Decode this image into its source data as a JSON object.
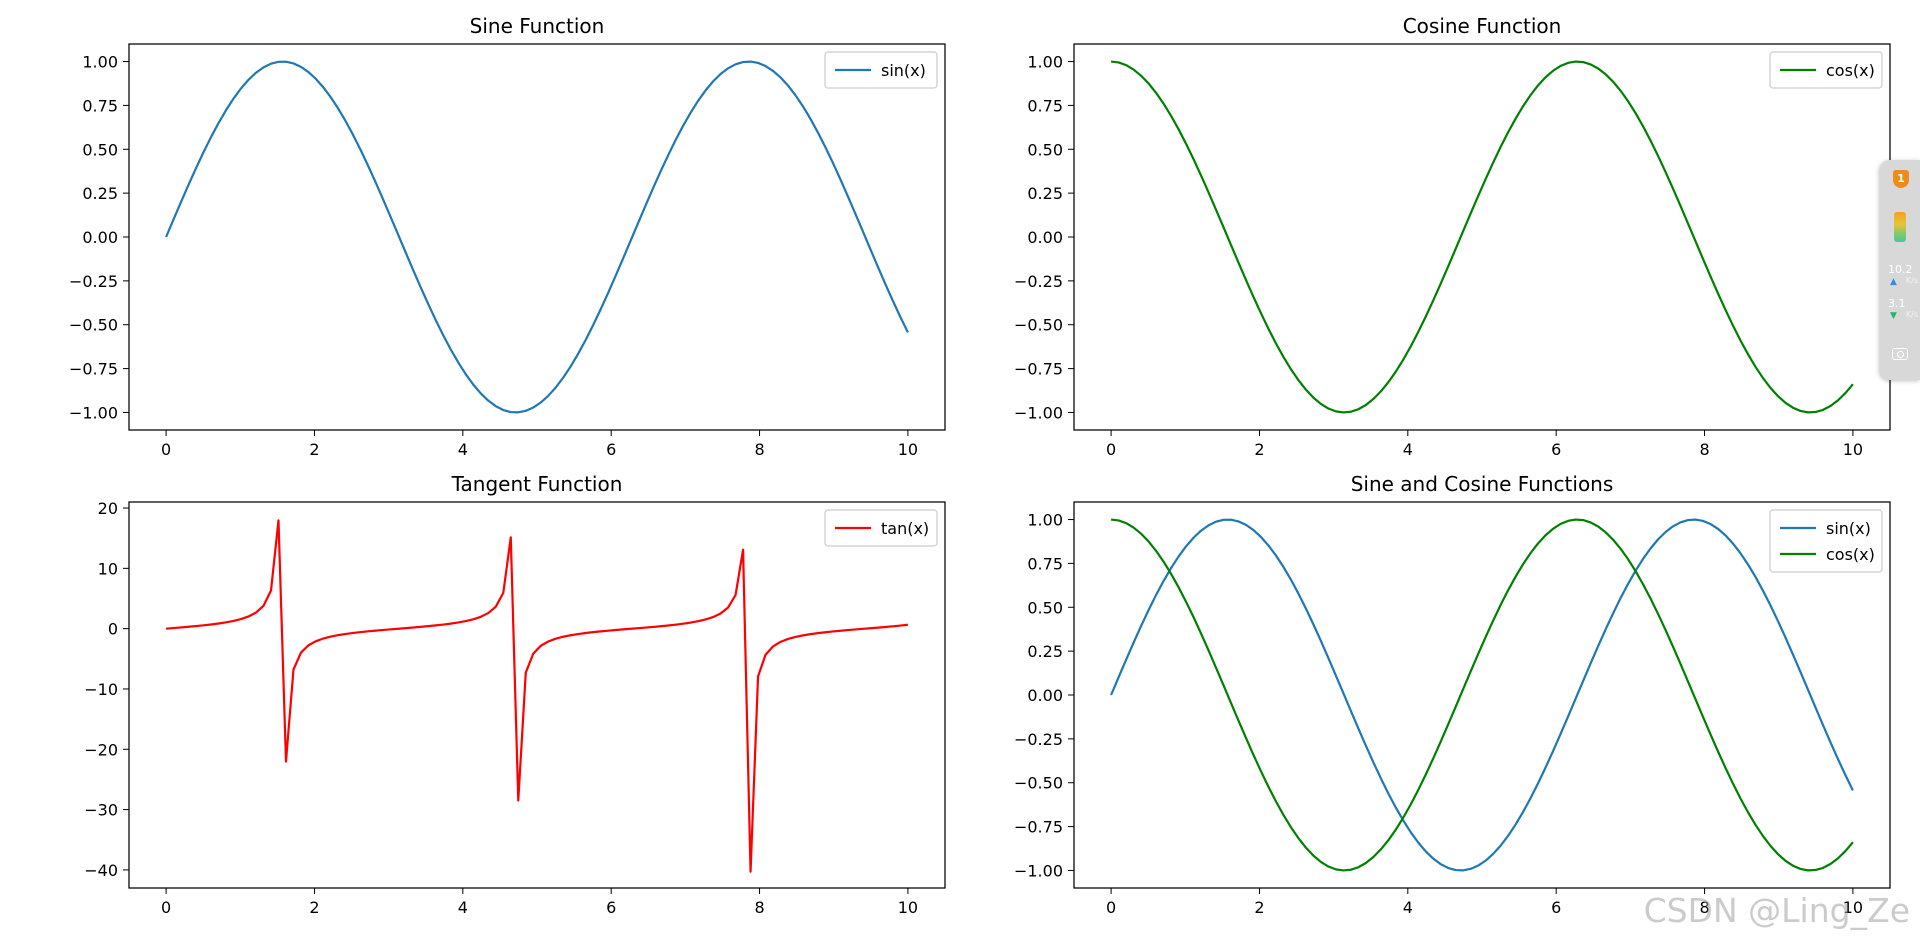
{
  "chart_data": [
    {
      "type": "line",
      "title": "Sine Function",
      "xlabel": "",
      "ylabel": "",
      "xlim": [
        -0.5,
        10.5
      ],
      "ylim": [
        -1.1,
        1.1
      ],
      "xticks": [
        0,
        2,
        4,
        6,
        8,
        10
      ],
      "yticks": [
        1.0,
        0.75,
        0.5,
        0.25,
        0.0,
        -0.25,
        -0.5,
        -0.75,
        -1.0
      ],
      "ytick_labels": [
        "1.00",
        "0.75",
        "0.50",
        "0.25",
        "0.00",
        "−0.25",
        "−0.50",
        "−0.75",
        "−1.00"
      ],
      "grid": false,
      "legend": "top-right",
      "series": [
        {
          "name": "sin(x)",
          "function": "sin",
          "x_range": [
            0,
            10
          ],
          "samples": 100,
          "color": "#1f77b4"
        }
      ]
    },
    {
      "type": "line",
      "title": "Cosine Function",
      "xlabel": "",
      "ylabel": "",
      "xlim": [
        -0.5,
        10.5
      ],
      "ylim": [
        -1.1,
        1.1
      ],
      "xticks": [
        0,
        2,
        4,
        6,
        8,
        10
      ],
      "yticks": [
        1.0,
        0.75,
        0.5,
        0.25,
        0.0,
        -0.25,
        -0.5,
        -0.75,
        -1.0
      ],
      "ytick_labels": [
        "1.00",
        "0.75",
        "0.50",
        "0.25",
        "0.00",
        "−0.25",
        "−0.50",
        "−0.75",
        "−1.00"
      ],
      "grid": false,
      "legend": "top-right",
      "series": [
        {
          "name": "cos(x)",
          "function": "cos",
          "x_range": [
            0,
            10
          ],
          "samples": 100,
          "color": "#008000"
        }
      ]
    },
    {
      "type": "line",
      "title": "Tangent Function",
      "xlabel": "",
      "ylabel": "",
      "xlim": [
        -0.5,
        10.5
      ],
      "ylim": [
        -43,
        21
      ],
      "xticks": [
        0,
        2,
        4,
        6,
        8,
        10
      ],
      "yticks": [
        20,
        10,
        0,
        -10,
        -20,
        -30,
        -40
      ],
      "ytick_labels": [
        "20",
        "10",
        "0",
        "−10",
        "−20",
        "−30",
        "−40"
      ],
      "grid": false,
      "legend": "top-right",
      "series": [
        {
          "name": "tan(x)",
          "function": "tan",
          "x_range": [
            0,
            10
          ],
          "samples": 100,
          "color": "#ff0000"
        }
      ]
    },
    {
      "type": "line",
      "title": "Sine and Cosine Functions",
      "xlabel": "",
      "ylabel": "",
      "xlim": [
        -0.5,
        10.5
      ],
      "ylim": [
        -1.1,
        1.1
      ],
      "xticks": [
        0,
        2,
        4,
        6,
        8,
        10
      ],
      "yticks": [
        1.0,
        0.75,
        0.5,
        0.25,
        0.0,
        -0.25,
        -0.5,
        -0.75,
        -1.0
      ],
      "ytick_labels": [
        "1.00",
        "0.75",
        "0.50",
        "0.25",
        "0.00",
        "−0.25",
        "−0.50",
        "−0.75",
        "−1.00"
      ],
      "grid": false,
      "legend": "top-right",
      "series": [
        {
          "name": "sin(x)",
          "function": "sin",
          "x_range": [
            0,
            10
          ],
          "samples": 100,
          "color": "#1f77b4"
        },
        {
          "name": "cos(x)",
          "function": "cos",
          "x_range": [
            0,
            10
          ],
          "samples": 100,
          "color": "#008000"
        }
      ]
    }
  ],
  "side_widget": {
    "badge": "1",
    "upload_speed": "10.2",
    "download_speed": "3.1",
    "speed_unit": "K/s",
    "icons": [
      "shield-badge-icon",
      "memory-meter-icon",
      "upload-arrow-icon",
      "download-arrow-icon",
      "camera-icon"
    ]
  },
  "watermark": "CSDN @Ling_Ze"
}
